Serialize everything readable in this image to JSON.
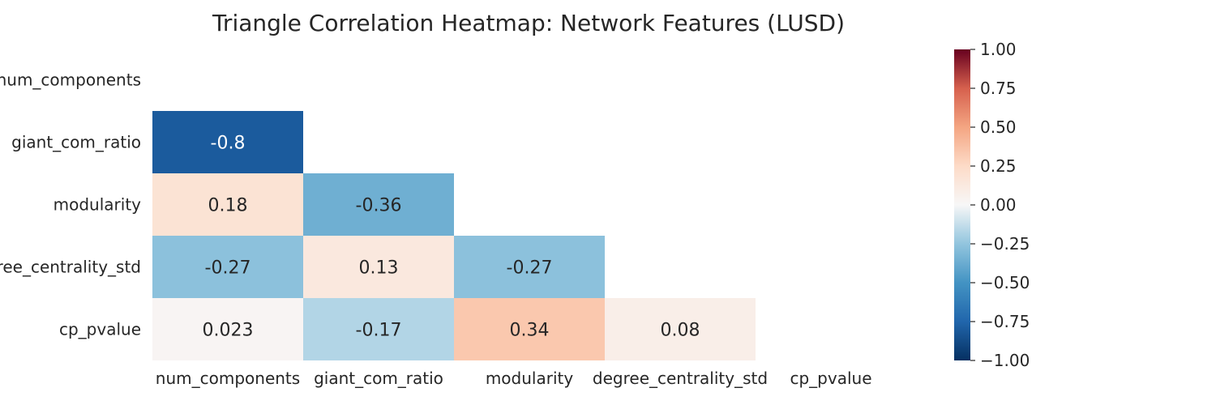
{
  "chart_data": {
    "type": "heatmap",
    "title": "Triangle Correlation Heatmap: Network Features (LUSD)",
    "variables": [
      "num_components",
      "giant_com_ratio",
      "modularity",
      "degree_centrality_std",
      "cp_pvalue"
    ],
    "matrix": [
      [
        null,
        null,
        null,
        null,
        null
      ],
      [
        -0.8,
        null,
        null,
        null,
        null
      ],
      [
        0.18,
        -0.36,
        null,
        null,
        null
      ],
      [
        -0.27,
        0.13,
        -0.27,
        null,
        null
      ],
      [
        0.023,
        -0.17,
        0.34,
        0.08,
        null
      ]
    ],
    "value_labels": [
      [
        null,
        null,
        null,
        null,
        null
      ],
      [
        "-0.8",
        null,
        null,
        null,
        null
      ],
      [
        "0.18",
        "-0.36",
        null,
        null,
        null
      ],
      [
        "-0.27",
        "0.13",
        "-0.27",
        null,
        null
      ],
      [
        "0.023",
        "-0.17",
        "0.34",
        "0.08",
        null
      ]
    ],
    "mask": "upper-triangle-including-diagonal",
    "colormap": "RdBu_r",
    "vmin": -1.0,
    "vmax": 1.0,
    "colorbar_ticks": [
      "1.00",
      "0.75",
      "0.50",
      "0.25",
      "0.00",
      "−0.25",
      "−0.50",
      "−0.75",
      "−1.00"
    ],
    "colorbar_tick_values": [
      1.0,
      0.75,
      0.5,
      0.25,
      0.0,
      -0.25,
      -0.5,
      -0.75,
      -1.0
    ],
    "colorbar_position": "right"
  }
}
